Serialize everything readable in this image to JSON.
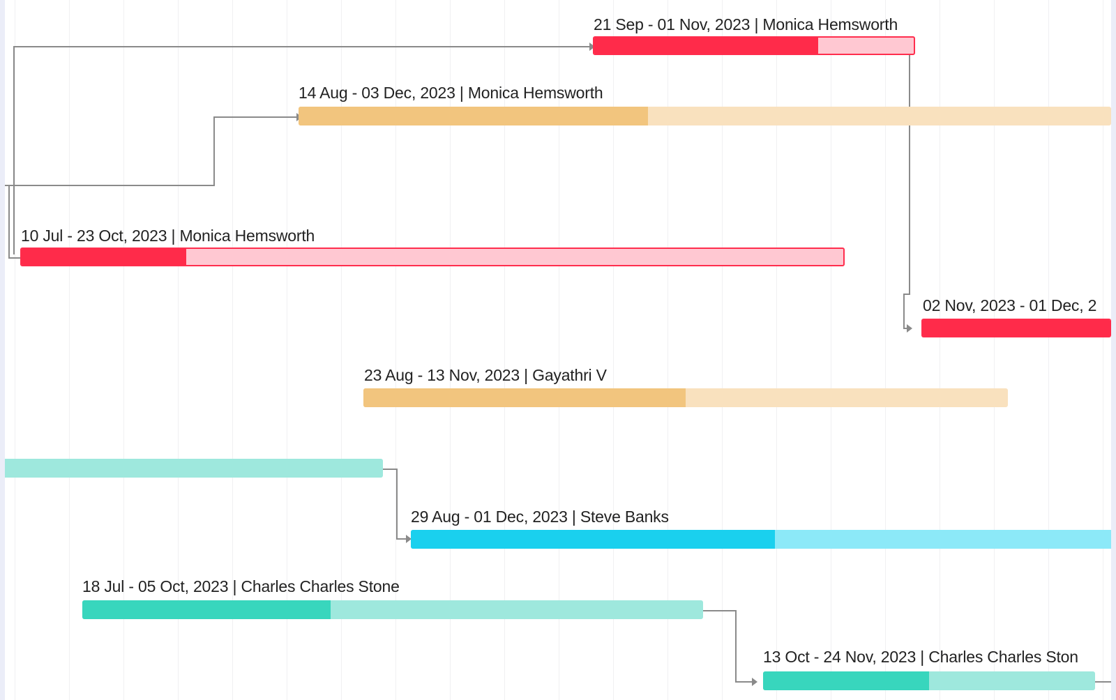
{
  "colors": {
    "red_progress": "#ff2b4a",
    "red_remaining": "#ffc8d2",
    "orange_progress": "#f2c57e",
    "orange_remaining": "#f9e1be",
    "mint_progress": "#38d6bd",
    "mint_remaining": "#9ee8dd",
    "cyan_progress": "#1ad0ee",
    "cyan_remaining": "#8ce9f8",
    "connector": "#8a8a8a",
    "page_background": "#ebedf8"
  },
  "tasks": [
    {
      "label": "21 Sep - 01 Nov, 2023 | Monica Hemsworth",
      "color": "red",
      "progress": 0.7
    },
    {
      "label": "14 Aug - 03 Dec, 2023 | Monica Hemsworth",
      "color": "orange",
      "progress": 0.43
    },
    {
      "label": "10 Jul - 23 Oct, 2023 | Monica Hemsworth",
      "color": "red",
      "progress": 0.2
    },
    {
      "label": "02 Nov, 2023 - 01 Dec, 2",
      "color": "red",
      "progress": 1.0
    },
    {
      "label": "23 Aug - 13 Nov, 2023 | Gayathri V",
      "color": "orange",
      "progress": 0.5
    },
    {
      "label": "",
      "color": "mint",
      "progress": 0.0
    },
    {
      "label": "29 Aug - 01 Dec, 2023 | Steve Banks",
      "color": "cyan",
      "progress": 0.52
    },
    {
      "label": "18 Jul - 05 Oct, 2023 | Charles Charles Stone",
      "color": "mint",
      "progress": 0.4
    },
    {
      "label": "13 Oct - 24 Nov, 2023 | Charles Charles Ston",
      "color": "mint",
      "progress": 0.5
    }
  ]
}
